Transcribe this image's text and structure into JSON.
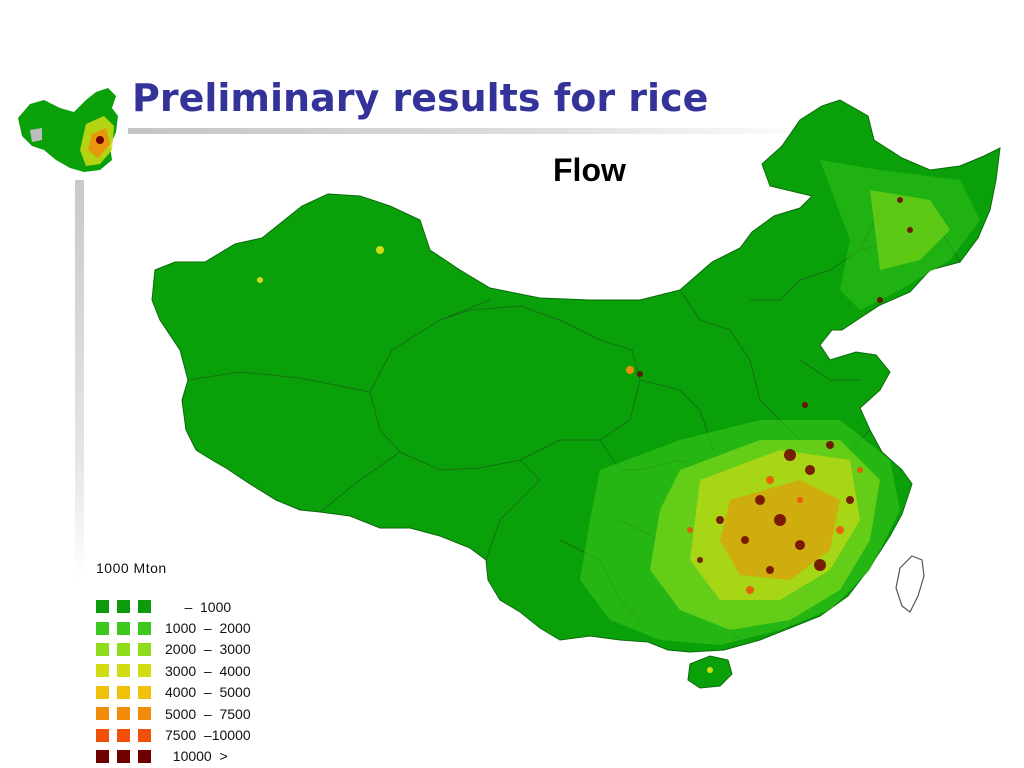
{
  "slide": {
    "title": "Preliminary results for rice",
    "subtitle": "Flow"
  },
  "legend": {
    "unit": "1000  Mton",
    "classes": [
      {
        "label": "     –  1000",
        "color": "#0d9b0d"
      },
      {
        "label": "1000  –  2000",
        "color": "#3cc81c"
      },
      {
        "label": "2000  –  3000",
        "color": "#8fdc1c"
      },
      {
        "label": "3000  –  4000",
        "color": "#d2dc14"
      },
      {
        "label": "4000  –  5000",
        "color": "#f0c00a"
      },
      {
        "label": "5000  –  7500",
        "color": "#f08c0a"
      },
      {
        "label": "7500  –10000",
        "color": "#f0500a"
      },
      {
        "label": "  10000  >",
        "color": "#6e0000"
      }
    ]
  },
  "map": {
    "land_color": "#0aa00a",
    "border_color": "#1a5a1a"
  }
}
